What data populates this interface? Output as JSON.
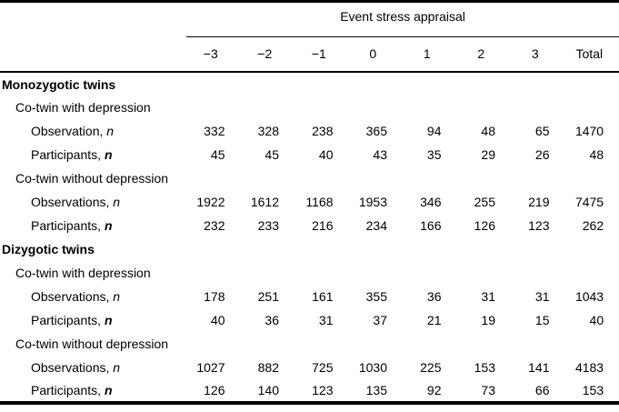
{
  "table": {
    "spanner": "Event stress appraisal",
    "columns": [
      "−3",
      "−2",
      "−1",
      "0",
      "1",
      "2",
      "3",
      "Total"
    ],
    "rows": [
      {
        "label": "Monozygotic twins",
        "level": 0,
        "bold": true,
        "values": []
      },
      {
        "label": "Co-twin with depression",
        "level": 1,
        "bold": false,
        "values": []
      },
      {
        "label": "Observation, ",
        "suffix": "n",
        "suffix_bold": false,
        "level": 2,
        "bold": false,
        "values": [
          332,
          328,
          238,
          365,
          94,
          48,
          65,
          1470
        ]
      },
      {
        "label": "Participants, ",
        "suffix": "n",
        "suffix_bold": true,
        "level": 2,
        "bold": false,
        "values": [
          45,
          45,
          40,
          43,
          35,
          29,
          26,
          48
        ]
      },
      {
        "label": "Co-twin without depression",
        "level": 1,
        "bold": false,
        "values": []
      },
      {
        "label": "Observations, ",
        "suffix": "n",
        "suffix_bold": false,
        "level": 2,
        "bold": false,
        "values": [
          1922,
          1612,
          1168,
          1953,
          346,
          255,
          219,
          7475
        ]
      },
      {
        "label": "Participants, ",
        "suffix": "n",
        "suffix_bold": true,
        "level": 2,
        "bold": false,
        "values": [
          232,
          233,
          216,
          234,
          166,
          126,
          123,
          262
        ]
      },
      {
        "label": "Dizygotic twins",
        "level": 0,
        "bold": true,
        "values": []
      },
      {
        "label": "Co-twin with depression",
        "level": 1,
        "bold": false,
        "values": []
      },
      {
        "label": "Observations, ",
        "suffix": "n",
        "suffix_bold": false,
        "level": 2,
        "bold": false,
        "values": [
          178,
          251,
          161,
          355,
          36,
          31,
          31,
          1043
        ]
      },
      {
        "label": "Participants, ",
        "suffix": "n",
        "suffix_bold": true,
        "level": 2,
        "bold": false,
        "values": [
          40,
          36,
          31,
          37,
          21,
          19,
          15,
          40
        ]
      },
      {
        "label": "Co-twin without depression",
        "level": 1,
        "bold": false,
        "values": []
      },
      {
        "label": "Observations, ",
        "suffix": "n",
        "suffix_bold": false,
        "level": 2,
        "bold": false,
        "values": [
          1027,
          882,
          725,
          1030,
          225,
          153,
          141,
          4183
        ]
      },
      {
        "label": "Participants, ",
        "suffix": "n",
        "suffix_bold": true,
        "level": 2,
        "bold": false,
        "values": [
          126,
          140,
          123,
          135,
          92,
          73,
          66,
          153
        ]
      }
    ]
  }
}
